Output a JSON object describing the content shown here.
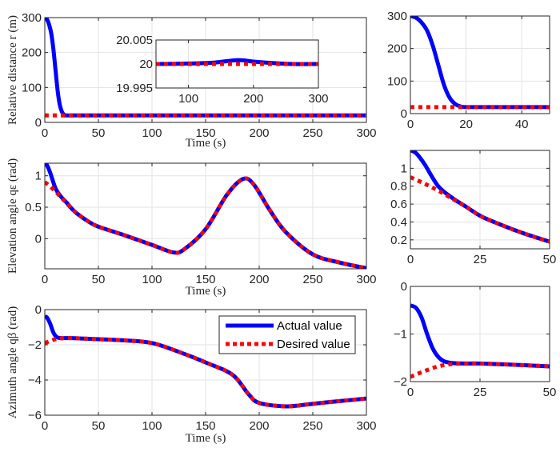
{
  "colors": {
    "actual": "#0000ff",
    "desired": "#ff0000",
    "grid": "#e3e3e3",
    "axis": "#262626"
  },
  "legend": {
    "placement": "top-right of bottom-left panel",
    "actual": "Actual value",
    "desired": "Desired value"
  },
  "chart_data": [
    {
      "id": "r_full",
      "type": "line",
      "xlabel": "Time (s)",
      "ylabel": "Relative distance r (m)",
      "xlim": [
        0,
        300
      ],
      "ylim": [
        0,
        300
      ],
      "xticks": [
        0,
        50,
        100,
        150,
        200,
        250,
        300
      ],
      "yticks": [
        0,
        100,
        200,
        300
      ],
      "grid": true,
      "series": [
        {
          "name": "Actual value",
          "x": [
            0,
            2,
            4,
            6,
            8,
            10,
            12,
            14,
            16,
            18,
            20,
            30,
            50,
            100,
            150,
            200,
            250,
            300
          ],
          "y": [
            300,
            295,
            280,
            255,
            210,
            150,
            90,
            50,
            30,
            22,
            20,
            20,
            20,
            20,
            20,
            20,
            20,
            20
          ]
        },
        {
          "name": "Desired value",
          "x": [
            0,
            300
          ],
          "y": [
            20,
            20
          ]
        }
      ]
    },
    {
      "id": "r_inset",
      "type": "line",
      "xlabel": "",
      "ylabel": "",
      "xlim": [
        50,
        300
      ],
      "ylim": [
        19.995,
        20.005
      ],
      "xticks": [
        100,
        200,
        300
      ],
      "yticks": [
        19.995,
        20,
        20.005
      ],
      "grid": true,
      "series": [
        {
          "name": "Actual value",
          "x": [
            50,
            100,
            140,
            175,
            200,
            230,
            260,
            300
          ],
          "y": [
            20.0,
            20.0001,
            20.0003,
            20.0008,
            20.0005,
            20.0002,
            20.0,
            20.0
          ]
        },
        {
          "name": "Desired value",
          "x": [
            50,
            300
          ],
          "y": [
            20,
            20
          ]
        }
      ]
    },
    {
      "id": "r_zoom",
      "type": "line",
      "xlabel": "",
      "ylabel": "",
      "xlim": [
        0,
        50
      ],
      "ylim": [
        0,
        300
      ],
      "xticks": [
        0,
        20,
        40
      ],
      "yticks": [
        0,
        100,
        200,
        300
      ],
      "grid": true,
      "series": [
        {
          "name": "Actual value",
          "x": [
            0,
            2,
            4,
            6,
            8,
            10,
            12,
            14,
            16,
            18,
            20,
            30,
            50
          ],
          "y": [
            300,
            295,
            280,
            255,
            210,
            150,
            90,
            50,
            30,
            22,
            20,
            20,
            20
          ]
        },
        {
          "name": "Desired value",
          "x": [
            0,
            50
          ],
          "y": [
            20,
            20
          ]
        }
      ]
    },
    {
      "id": "qe_full",
      "type": "line",
      "xlabel": "Time (s)",
      "ylabel": "Elevation angle qε (rad)",
      "xlim": [
        0,
        300
      ],
      "ylim": [
        -0.48,
        1.2
      ],
      "xticks": [
        0,
        50,
        100,
        150,
        200,
        250,
        300
      ],
      "yticks": [
        0,
        0.5,
        1
      ],
      "grid": true,
      "series": [
        {
          "name": "Actual value",
          "x": [
            0,
            2,
            5,
            10,
            15,
            20,
            25,
            30,
            40,
            50,
            75,
            100,
            120,
            130,
            150,
            170,
            185,
            195,
            210,
            225,
            250,
            275,
            300
          ],
          "y": [
            1.2,
            1.17,
            1.05,
            0.8,
            0.67,
            0.58,
            0.48,
            0.4,
            0.28,
            0.19,
            0.05,
            -0.1,
            -0.22,
            -0.17,
            0.15,
            0.7,
            0.95,
            0.86,
            0.45,
            0.1,
            -0.25,
            -0.38,
            -0.47
          ]
        },
        {
          "name": "Desired value",
          "x": [
            0,
            5,
            10,
            15,
            20,
            25,
            30,
            40,
            50,
            75,
            100,
            120,
            130,
            150,
            170,
            185,
            195,
            210,
            225,
            250,
            275,
            300
          ],
          "y": [
            0.9,
            0.83,
            0.75,
            0.66,
            0.57,
            0.48,
            0.4,
            0.28,
            0.19,
            0.05,
            -0.1,
            -0.22,
            -0.17,
            0.15,
            0.7,
            0.95,
            0.86,
            0.45,
            0.1,
            -0.25,
            -0.38,
            -0.47
          ]
        }
      ]
    },
    {
      "id": "qe_zoom",
      "type": "line",
      "xlabel": "",
      "ylabel": "",
      "xlim": [
        0,
        50
      ],
      "ylim": [
        0.1,
        1.2
      ],
      "xticks": [
        0,
        25,
        50
      ],
      "yticks": [
        0.2,
        0.4,
        0.6,
        0.8,
        1
      ],
      "grid": true,
      "series": [
        {
          "name": "Actual value",
          "x": [
            0,
            2,
            5,
            10,
            15,
            20,
            25,
            30,
            40,
            50
          ],
          "y": [
            1.2,
            1.17,
            1.05,
            0.8,
            0.67,
            0.57,
            0.47,
            0.4,
            0.28,
            0.18
          ]
        },
        {
          "name": "Desired value",
          "x": [
            0,
            5,
            10,
            15,
            20,
            25,
            30,
            40,
            50
          ],
          "y": [
            0.9,
            0.83,
            0.75,
            0.66,
            0.57,
            0.47,
            0.4,
            0.28,
            0.18
          ]
        }
      ]
    },
    {
      "id": "qb_full",
      "type": "line",
      "xlabel": "Time (s)",
      "ylabel": "Azimuth angle qβ (rad)",
      "xlim": [
        0,
        300
      ],
      "ylim": [
        -6,
        0
      ],
      "xticks": [
        0,
        50,
        100,
        150,
        200,
        250,
        300
      ],
      "yticks": [
        -6,
        -4,
        -2,
        0
      ],
      "grid": true,
      "series": [
        {
          "name": "Actual value",
          "x": [
            0,
            2,
            5,
            8,
            11,
            15,
            25,
            50,
            75,
            100,
            125,
            150,
            175,
            190,
            200,
            225,
            250,
            275,
            300
          ],
          "y": [
            -0.4,
            -0.45,
            -0.8,
            -1.3,
            -1.55,
            -1.62,
            -1.62,
            -1.68,
            -1.75,
            -1.9,
            -2.4,
            -3.0,
            -3.7,
            -4.8,
            -5.3,
            -5.5,
            -5.35,
            -5.2,
            -5.05
          ]
        },
        {
          "name": "Desired value",
          "x": [
            0,
            5,
            10,
            15,
            25,
            50,
            75,
            100,
            125,
            150,
            175,
            190,
            200,
            225,
            250,
            275,
            300
          ],
          "y": [
            -1.9,
            -1.78,
            -1.68,
            -1.63,
            -1.62,
            -1.68,
            -1.75,
            -1.9,
            -2.4,
            -3.0,
            -3.7,
            -4.8,
            -5.3,
            -5.5,
            -5.35,
            -5.2,
            -5.05
          ]
        }
      ]
    },
    {
      "id": "qb_zoom",
      "type": "line",
      "xlabel": "",
      "ylabel": "",
      "xlim": [
        0,
        50
      ],
      "ylim": [
        -2,
        0
      ],
      "xticks": [
        0,
        25,
        50
      ],
      "yticks": [
        -2,
        -1,
        0
      ],
      "grid": true,
      "series": [
        {
          "name": "Actual value",
          "x": [
            0,
            2,
            4,
            6,
            8,
            10,
            12,
            15,
            20,
            25,
            35,
            50
          ],
          "y": [
            -0.4,
            -0.45,
            -0.65,
            -1.0,
            -1.3,
            -1.48,
            -1.57,
            -1.61,
            -1.62,
            -1.62,
            -1.64,
            -1.68
          ]
        },
        {
          "name": "Desired value",
          "x": [
            0,
            5,
            10,
            15,
            20,
            25,
            35,
            50
          ],
          "y": [
            -1.9,
            -1.78,
            -1.68,
            -1.63,
            -1.62,
            -1.62,
            -1.64,
            -1.68
          ]
        }
      ]
    }
  ]
}
